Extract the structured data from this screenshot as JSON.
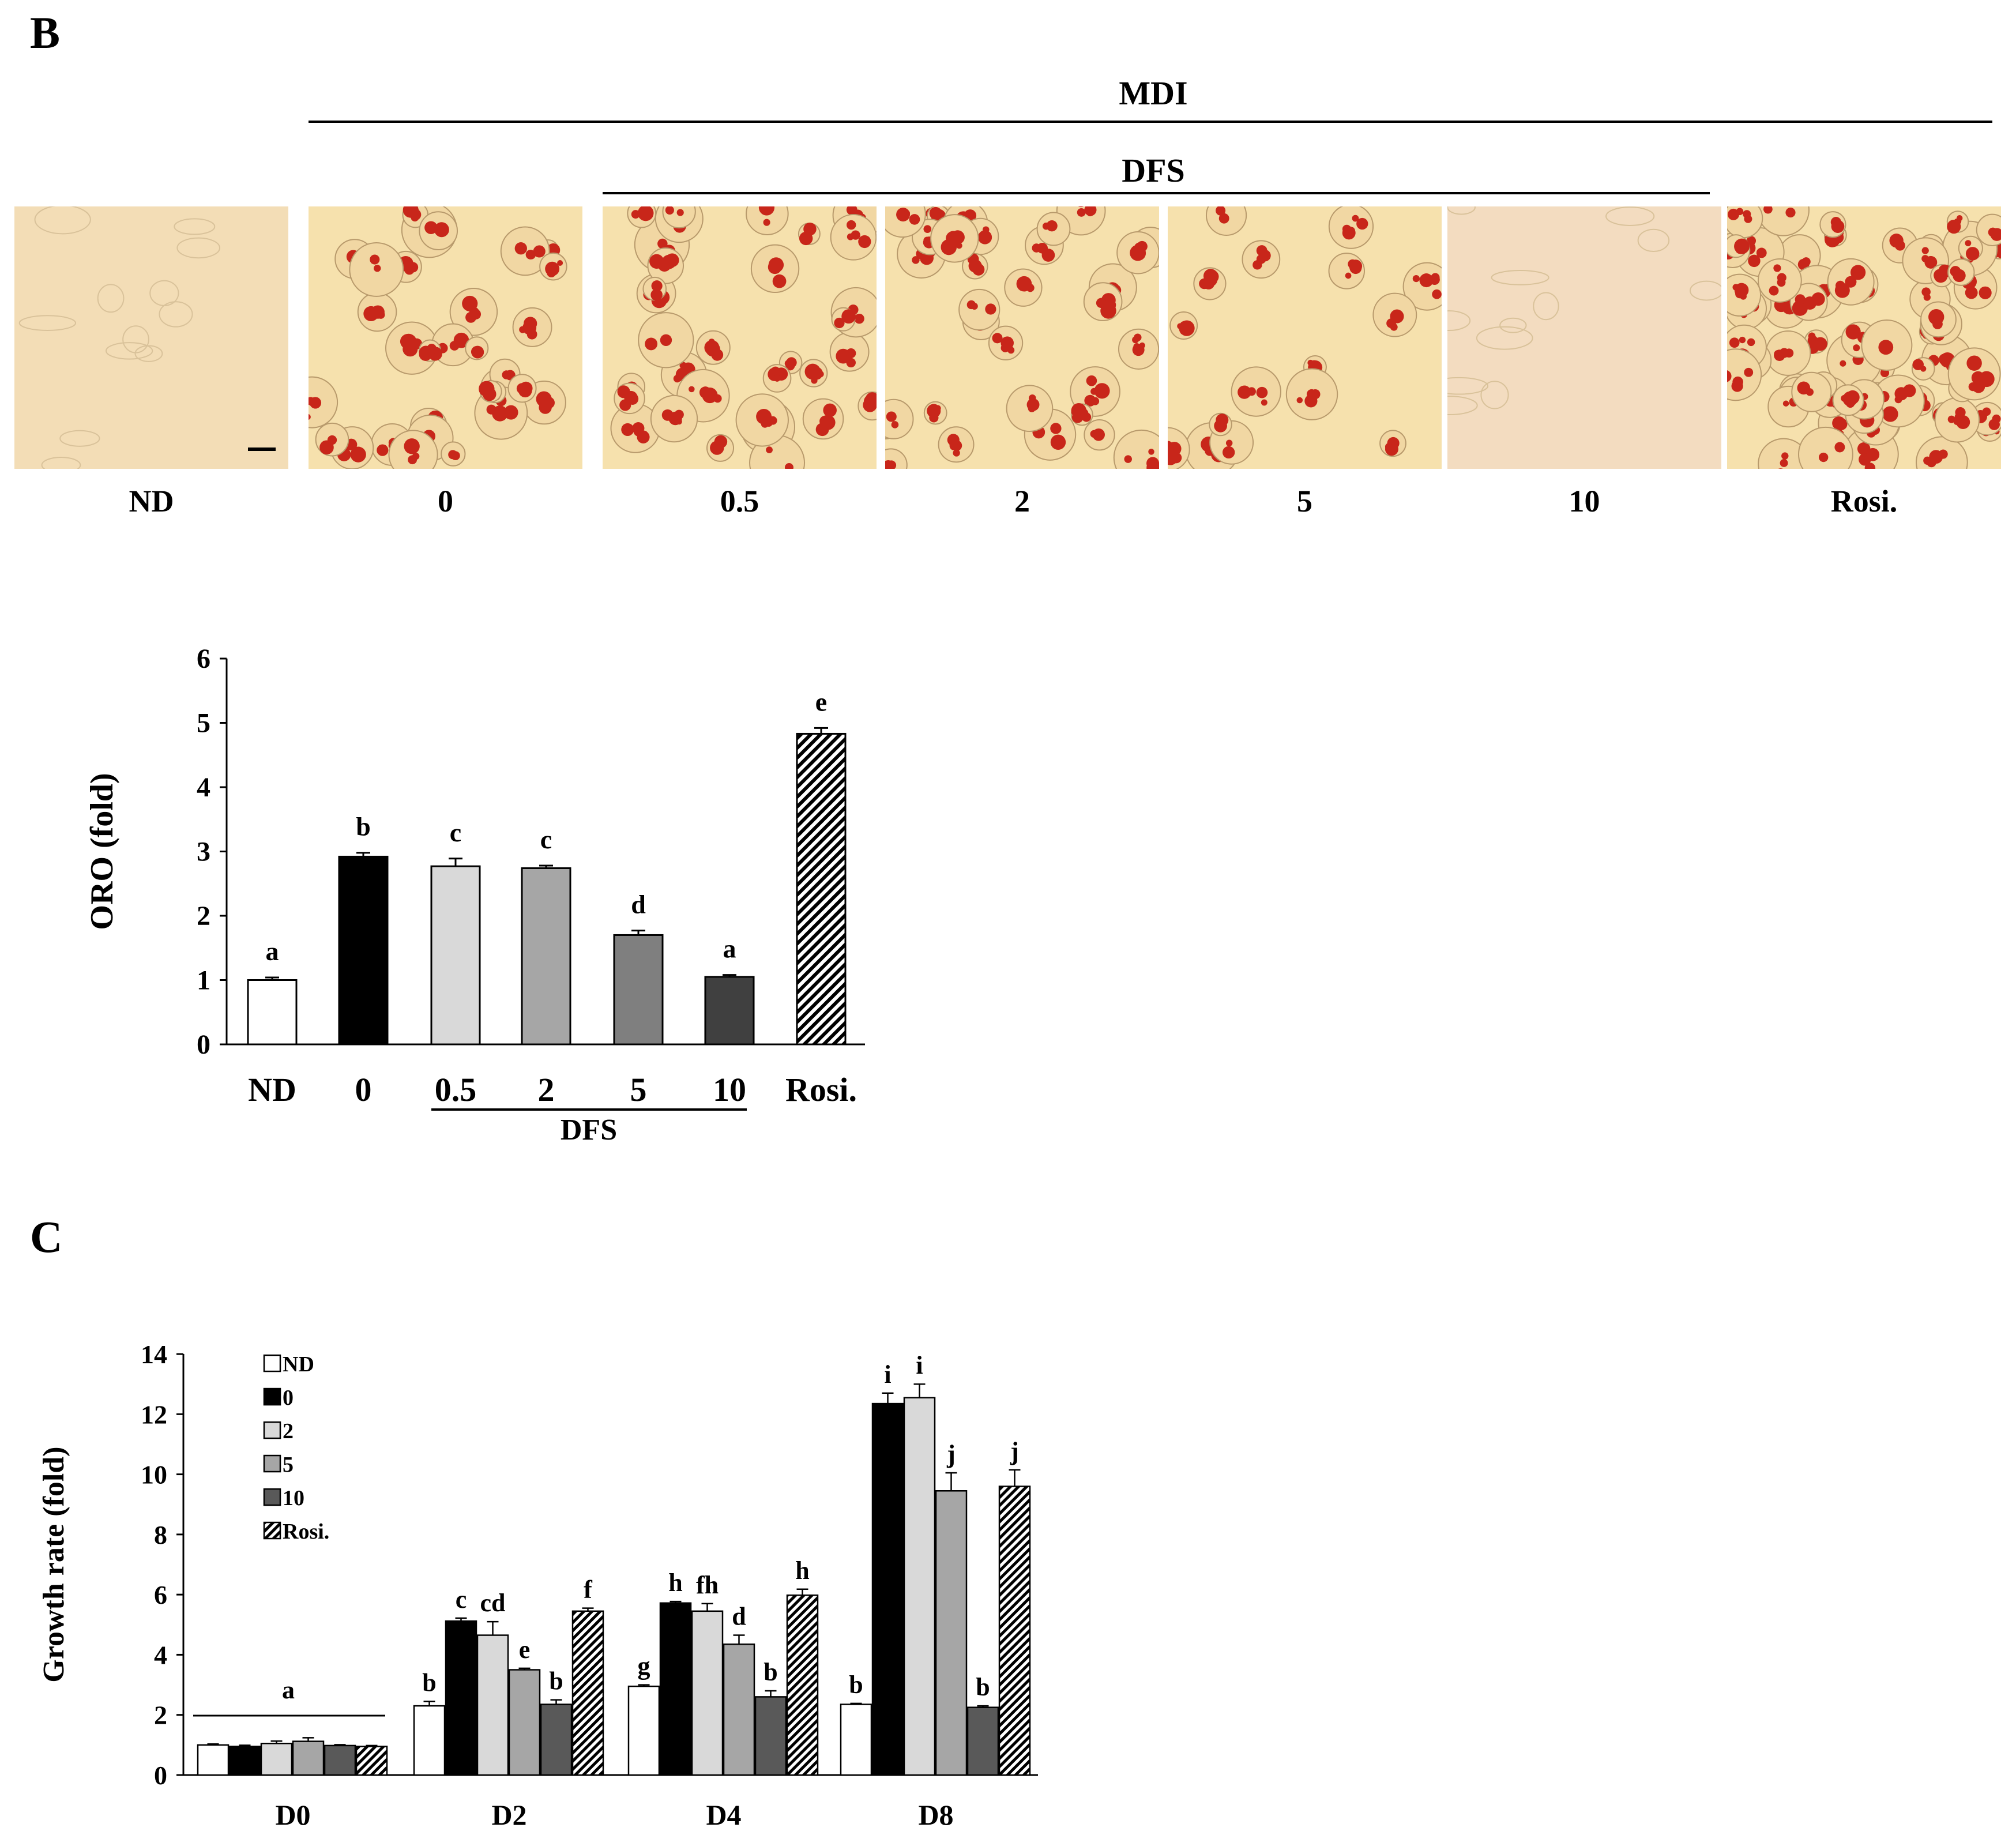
{
  "panel_b": {
    "letter": "B",
    "mdi_label": "MDI",
    "dfs_label": "DFS",
    "images": [
      {
        "label": "ND",
        "stain": "none"
      },
      {
        "label": "0",
        "stain": "high"
      },
      {
        "label": "0.5",
        "stain": "high"
      },
      {
        "label": "2",
        "stain": "high"
      },
      {
        "label": "5",
        "stain": "medium"
      },
      {
        "label": "10",
        "stain": "none"
      },
      {
        "label": "Rosi.",
        "stain": "very-high"
      }
    ]
  },
  "panel_c": {
    "letter": "C"
  },
  "chart_data": [
    {
      "type": "bar",
      "ylabel": "ORO (fold)",
      "xlabel": "DFS",
      "ylim": [
        0,
        6
      ],
      "yticks": [
        0,
        1,
        2,
        3,
        4,
        5,
        6
      ],
      "categories": [
        "ND",
        "0",
        "0.5",
        "2",
        "5",
        "10",
        "Rosi."
      ],
      "values": [
        1.0,
        2.92,
        2.77,
        2.74,
        1.7,
        1.05,
        4.83
      ],
      "errors": [
        0.04,
        0.06,
        0.12,
        0.04,
        0.07,
        0.03,
        0.09
      ],
      "annotations": [
        "a",
        "b",
        "c",
        "c",
        "d",
        "a",
        "e"
      ],
      "fills": [
        "#ffffff",
        "#000000",
        "#d9d9d9",
        "#a6a6a6",
        "#7f7f7f",
        "#404040",
        "hatch"
      ],
      "dfs_group": [
        "0.5",
        "2",
        "5",
        "10"
      ]
    },
    {
      "type": "bar",
      "ylabel": "Growth rate (fold)",
      "ylim": [
        0,
        14
      ],
      "yticks": [
        0,
        2,
        4,
        6,
        8,
        10,
        12,
        14
      ],
      "categories": [
        "D0",
        "D2",
        "D4",
        "D8"
      ],
      "legend_position": "top-left",
      "series": [
        {
          "name": "ND",
          "fill": "#ffffff",
          "values": [
            1.0,
            2.3,
            2.95,
            2.35
          ],
          "errors": [
            0.03,
            0.15,
            0.05,
            0.03
          ]
        },
        {
          "name": "0",
          "fill": "#000000",
          "values": [
            0.95,
            5.12,
            5.72,
            12.35
          ],
          "errors": [
            0.04,
            0.1,
            0.05,
            0.35
          ]
        },
        {
          "name": "2",
          "fill": "#d9d9d9",
          "values": [
            1.05,
            4.65,
            5.45,
            12.55
          ],
          "errors": [
            0.08,
            0.45,
            0.25,
            0.45
          ]
        },
        {
          "name": "5",
          "fill": "#a6a6a6",
          "values": [
            1.12,
            3.5,
            4.35,
            9.45
          ],
          "errors": [
            0.12,
            0.05,
            0.3,
            0.6
          ]
        },
        {
          "name": "10",
          "fill": "#595959",
          "values": [
            0.98,
            2.35,
            2.6,
            2.25
          ],
          "errors": [
            0.03,
            0.15,
            0.2,
            0.05
          ]
        },
        {
          "name": "Rosi.",
          "fill": "hatch",
          "values": [
            0.95,
            5.45,
            5.98,
            9.6
          ],
          "errors": [
            0.03,
            0.1,
            0.2,
            0.55
          ]
        }
      ],
      "annotations": {
        "D0": [
          "a"
        ],
        "D2": [
          "b",
          "c",
          "cd",
          "e",
          "b",
          "f"
        ],
        "D4": [
          "g",
          "h",
          "fh",
          "d",
          "b",
          "h"
        ],
        "D8": [
          "b",
          "i",
          "i",
          "j",
          "b",
          "j"
        ]
      }
    }
  ]
}
